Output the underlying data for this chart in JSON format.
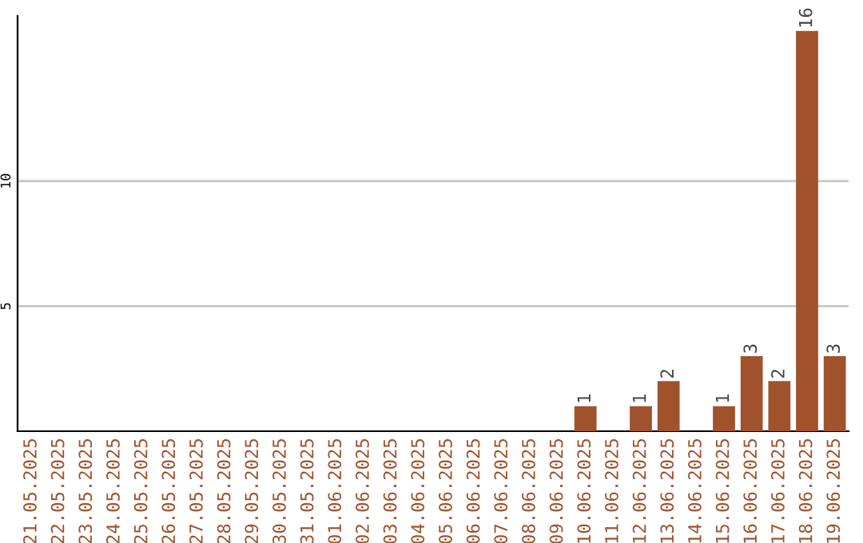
{
  "chart_data": {
    "type": "bar",
    "categories": [
      "21.05.2025",
      "22.05.2025",
      "23.05.2025",
      "24.05.2025",
      "25.05.2025",
      "26.05.2025",
      "27.05.2025",
      "28.05.2025",
      "29.05.2025",
      "30.05.2025",
      "31.05.2025",
      "01.06.2025",
      "02.06.2025",
      "03.06.2025",
      "04.06.2025",
      "05.06.2025",
      "06.06.2025",
      "07.06.2025",
      "08.06.2025",
      "09.06.2025",
      "10.06.2025",
      "11.06.2025",
      "12.06.2025",
      "13.06.2025",
      "14.06.2025",
      "15.06.2025",
      "16.06.2025",
      "17.06.2025",
      "18.06.2025",
      "19.06.2025"
    ],
    "values": [
      0,
      0,
      0,
      0,
      0,
      0,
      0,
      0,
      0,
      0,
      0,
      0,
      0,
      0,
      0,
      0,
      0,
      0,
      0,
      0,
      1,
      0,
      1,
      2,
      0,
      1,
      3,
      2,
      16,
      3
    ],
    "value_labels": [
      null,
      null,
      null,
      null,
      null,
      null,
      null,
      null,
      null,
      null,
      null,
      null,
      null,
      null,
      null,
      null,
      null,
      null,
      null,
      null,
      "1",
      null,
      "1",
      "2",
      null,
      "1",
      "3",
      "2",
      "16",
      "3"
    ],
    "color": "#a0522d",
    "ylim": [
      0,
      16.6
    ],
    "yticks": [
      5,
      10
    ],
    "grid": "y",
    "legend": false
  }
}
